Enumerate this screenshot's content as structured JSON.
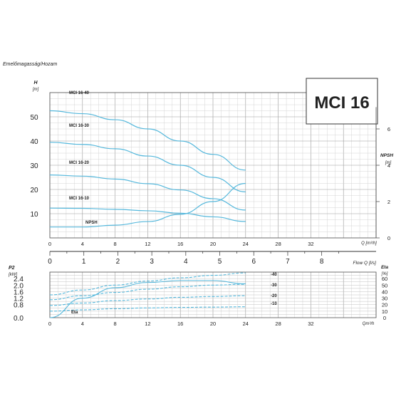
{
  "chart_data": [
    {
      "type": "line",
      "title": "MCI 16",
      "caption": "Emelőmagasság/Hozam",
      "xlabel": "Q [m³/h]",
      "ylabel": "H [m]",
      "ylabel_top": "H",
      "ylabel_unit": "[m]",
      "y2label": "NPSH [m]",
      "y2label_top": "NPSH",
      "y2label_unit": "[m]",
      "xlim": [
        0,
        40
      ],
      "ylim": [
        0,
        60
      ],
      "y2lim": [
        0,
        8
      ],
      "x_ticks": [
        0,
        4,
        8,
        12,
        16,
        20,
        24,
        28,
        32
      ],
      "y_ticks": [
        10,
        20,
        30,
        40,
        50
      ],
      "y2_ticks": [
        0,
        2,
        4,
        6
      ],
      "grid": true,
      "series": [
        {
          "name": "MCI 16-40",
          "x": [
            0,
            4,
            8,
            12,
            16,
            20,
            24
          ],
          "y": [
            52.5,
            51.3,
            48.8,
            45.0,
            40.0,
            34.5,
            28.0
          ]
        },
        {
          "name": "MCI 16-30",
          "x": [
            0,
            4,
            8,
            12,
            16,
            20,
            24
          ],
          "y": [
            39.5,
            38.6,
            36.8,
            33.8,
            30.0,
            25.0,
            19.0
          ]
        },
        {
          "name": "MCI 16-20",
          "x": [
            0,
            4,
            8,
            12,
            16,
            20,
            24
          ],
          "y": [
            26.0,
            25.5,
            24.3,
            22.4,
            19.8,
            16.2,
            11.5
          ]
        },
        {
          "name": "MCI 16-10",
          "x": [
            0,
            4,
            8,
            12,
            16,
            20,
            24
          ],
          "y": [
            12.3,
            12.2,
            11.8,
            11.2,
            10.2,
            8.7,
            6.8
          ]
        },
        {
          "name": "NPSH",
          "axis": "y2",
          "x": [
            0,
            4,
            8,
            12,
            16,
            20,
            24
          ],
          "y": [
            0.6,
            0.6,
            0.7,
            0.9,
            1.3,
            2.0,
            3.0
          ]
        }
      ]
    },
    {
      "type": "line",
      "xlabel": "Flow Q [l/s]",
      "xlim": [
        0,
        9.6
      ],
      "x_ticks": [
        0,
        1,
        2,
        3,
        4,
        5,
        6,
        7,
        8
      ],
      "grid": false,
      "series": []
    },
    {
      "type": "line",
      "xlabel": "Qm³/h",
      "ylabel": "P2 [kW]",
      "ylabel_top": "P2",
      "ylabel_unit": "[kW]",
      "y2label": "Eta [%]",
      "y2label_top": "Eta",
      "y2label_unit": "[%]",
      "xlim": [
        0,
        40
      ],
      "ylim": [
        0,
        2.8
      ],
      "y2lim": [
        0,
        70
      ],
      "x_ticks": [
        0,
        4,
        8,
        12,
        16,
        20,
        24,
        28,
        32
      ],
      "y_ticks": [
        "0.0",
        "0.8",
        "1.2",
        "1.6",
        "2.0",
        "2.4"
      ],
      "y2_ticks": [
        0,
        10,
        20,
        30,
        40,
        50,
        60
      ],
      "grid": true,
      "series": [
        {
          "name": "-40",
          "x": [
            0,
            4,
            8,
            12,
            16,
            20,
            24
          ],
          "y": [
            1.4,
            1.7,
            2.0,
            2.25,
            2.45,
            2.6,
            2.75
          ]
        },
        {
          "name": "-30",
          "x": [
            0,
            4,
            8,
            12,
            16,
            20,
            24
          ],
          "y": [
            1.1,
            1.35,
            1.55,
            1.75,
            1.9,
            2.0,
            2.05
          ]
        },
        {
          "name": "-20",
          "x": [
            0,
            4,
            8,
            12,
            16,
            20,
            24
          ],
          "y": [
            0.75,
            0.9,
            1.05,
            1.15,
            1.25,
            1.3,
            1.35
          ]
        },
        {
          "name": "-10",
          "x": [
            0,
            4,
            8,
            12,
            16,
            20,
            24
          ],
          "y": [
            0.4,
            0.48,
            0.55,
            0.6,
            0.63,
            0.65,
            0.67
          ]
        },
        {
          "name": "Eta",
          "axis": "y2",
          "x": [
            0,
            4,
            8,
            12,
            16,
            20,
            24
          ],
          "y": [
            0,
            30,
            46,
            54,
            57,
            57,
            52
          ]
        }
      ]
    }
  ]
}
